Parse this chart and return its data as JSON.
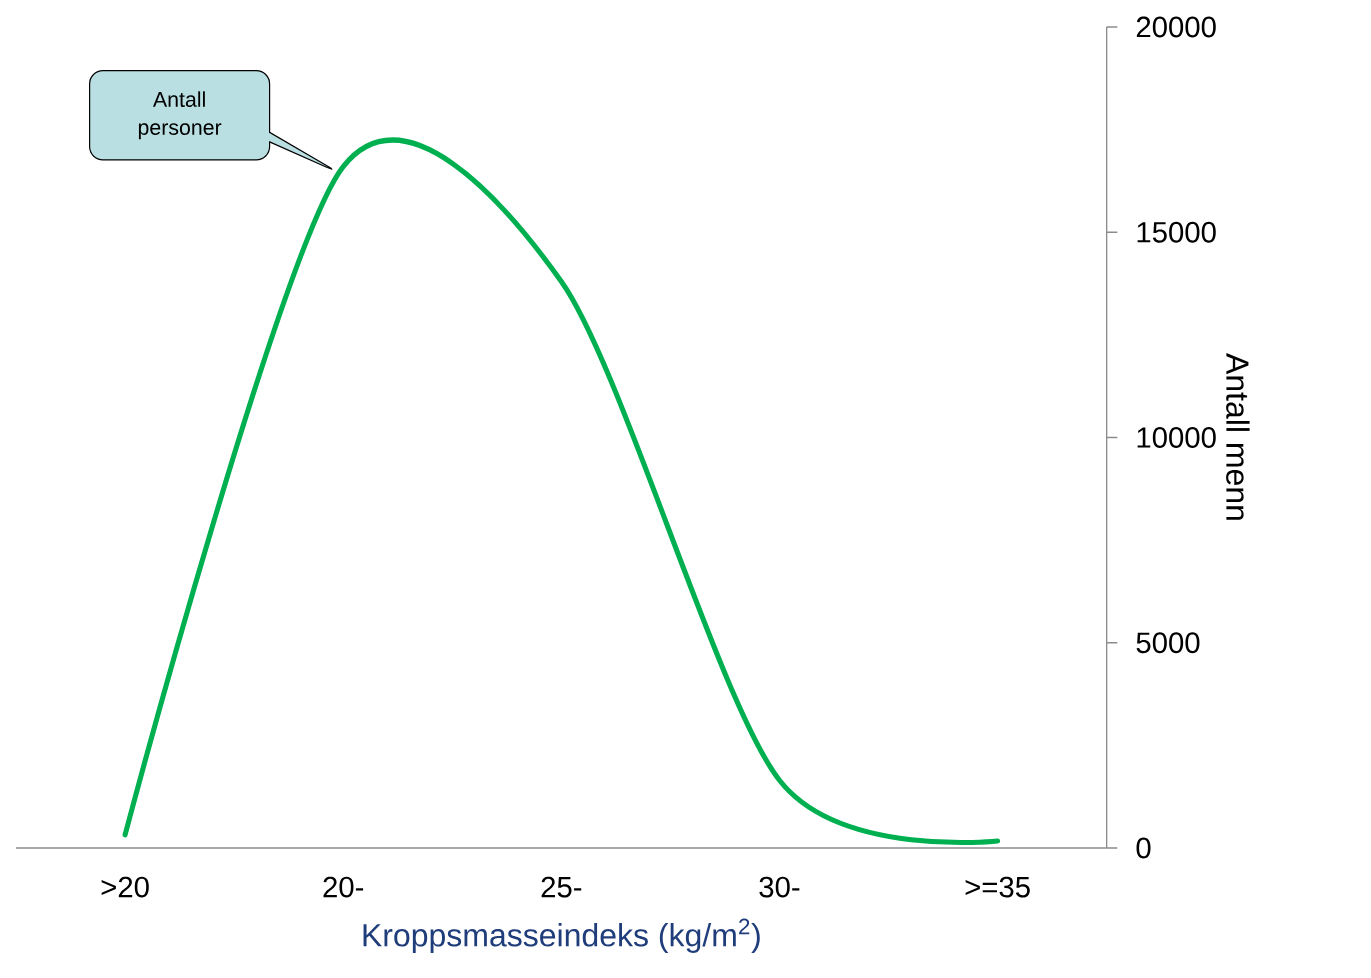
{
  "chart_data": {
    "type": "line",
    "categories": [
      ">20",
      "20-",
      "25-",
      "30-",
      ">=35"
    ],
    "series": [
      {
        "color": "#00b050",
        "values": [
          320,
          16600,
          13800,
          1650,
          170
        ]
      }
    ],
    "xlabel": "Kroppsmasseindeks (kg/m$^{2}$)",
    "ylabel": "Antall menn",
    "ylim": [
      0,
      20000
    ],
    "yticks": [
      0,
      5000,
      10000,
      15000,
      20000
    ],
    "annotations": [
      "Antall personer"
    ],
    "grid": false,
    "marker": "none",
    "line_style": "solid"
  }
}
